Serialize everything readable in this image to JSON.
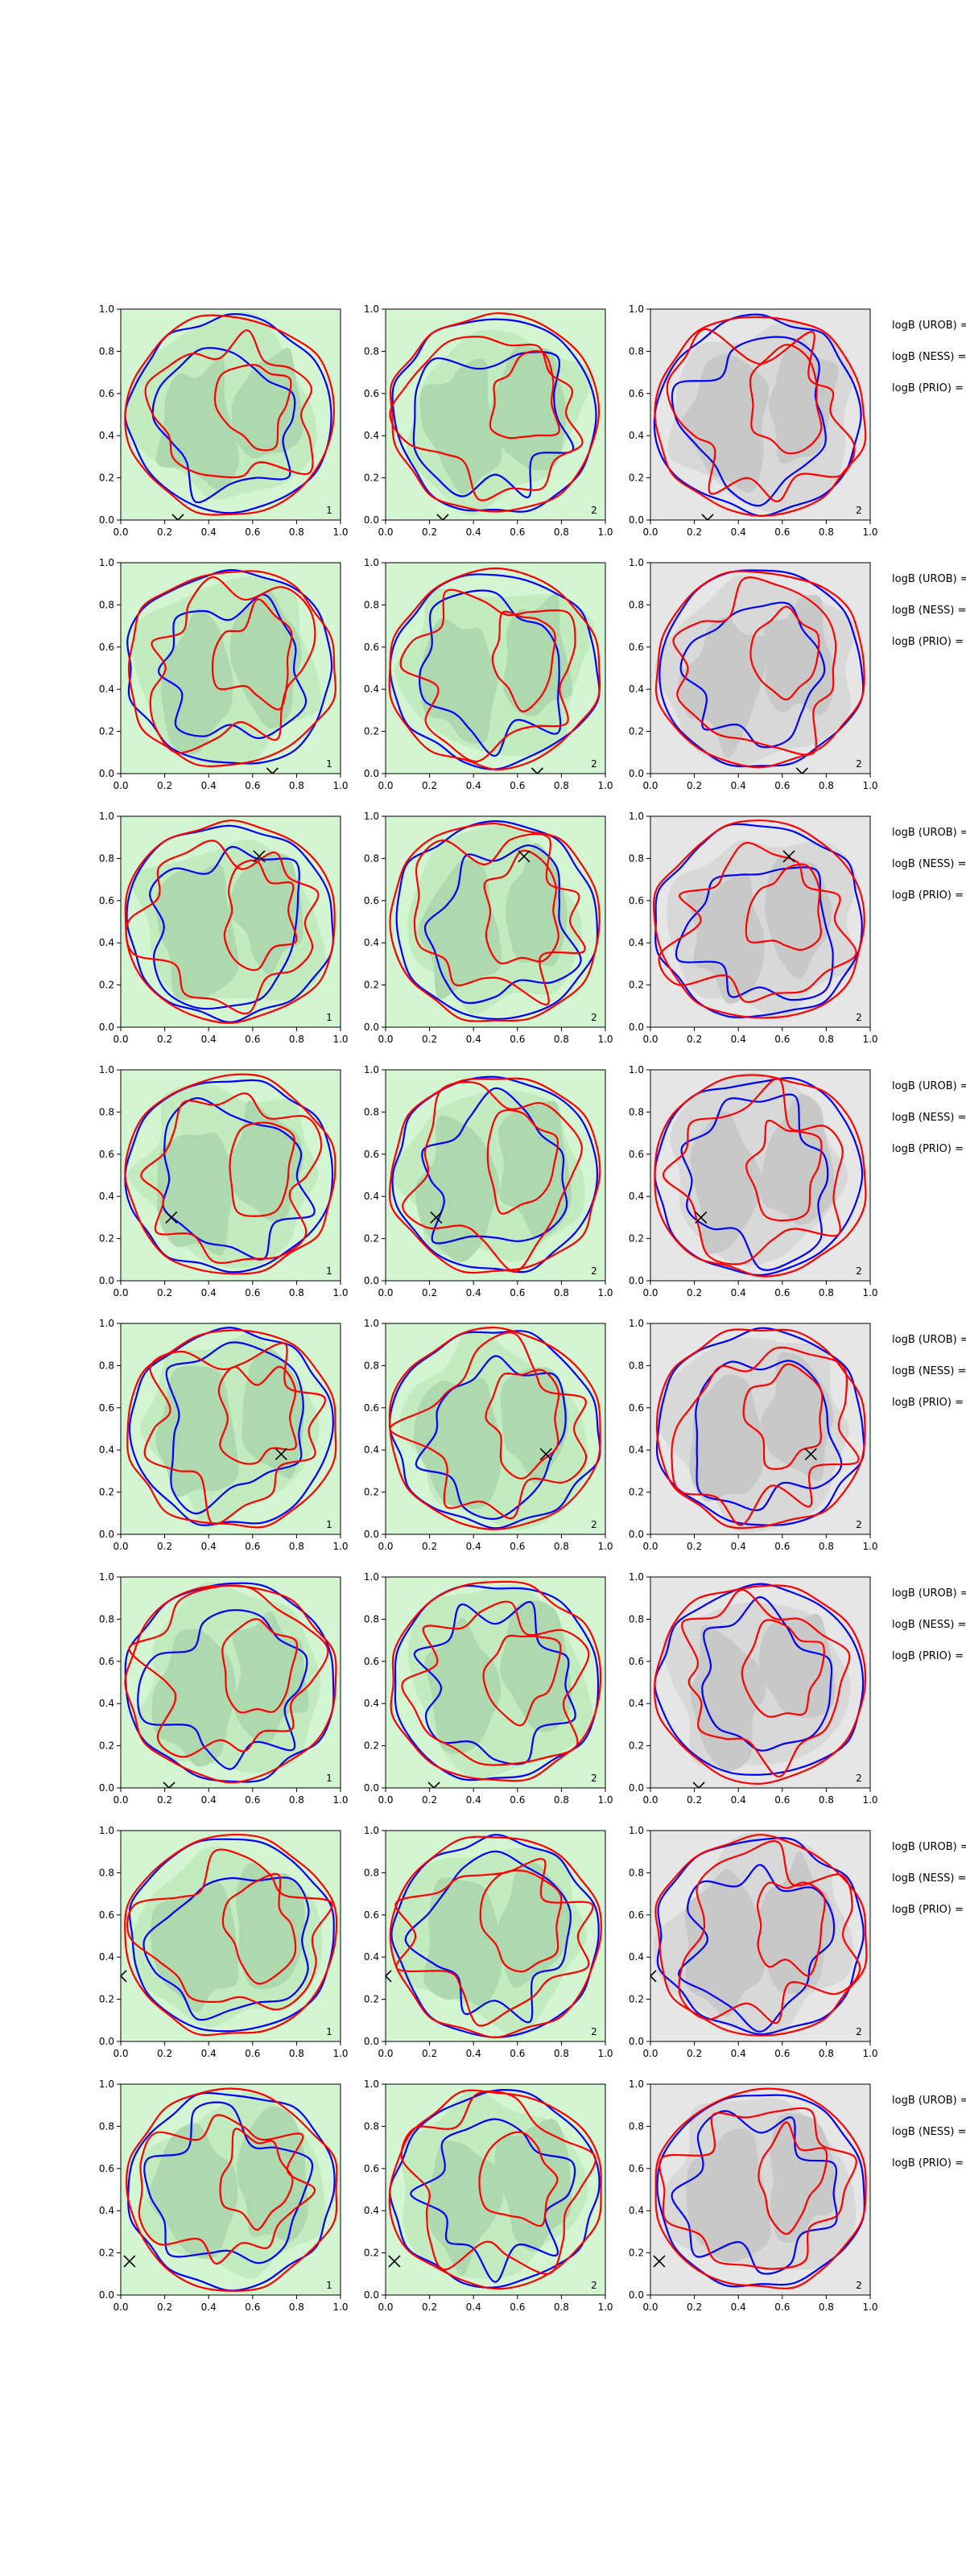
{
  "colors": {
    "red": "#ff0000",
    "blue": "#0000ff",
    "green_base": "#d4f5d2",
    "green_mid": "#c2ebc0",
    "green_dark": "#aed8ae",
    "grey_base": "#e6e6e6",
    "grey_mid": "#d8d8d8",
    "grey_dark": "#c8c8c8"
  },
  "tick_labels": [
    "0.0",
    "0.2",
    "0.4",
    "0.6",
    "0.8",
    "1.0"
  ],
  "column_labels": [
    "1",
    "2",
    "2"
  ],
  "side_labels": [
    "logB (UROB) =",
    "logB (NESS) =",
    "logB (PRIO) ="
  ],
  "chart_data": {
    "type": "contour",
    "grid": "8 rows x 3 columns",
    "xlim": [
      0,
      1
    ],
    "ylim": [
      0,
      1
    ],
    "xticks": [
      0.0,
      0.2,
      0.4,
      0.6,
      0.8,
      1.0
    ],
    "yticks": [
      0.0,
      0.2,
      0.4,
      0.6,
      0.8,
      1.0
    ],
    "column_fills": [
      "green",
      "green",
      "grey"
    ],
    "rows": [
      {
        "marker": {
          "x": 0.26,
          "y": 0.0
        }
      },
      {
        "marker": {
          "x": 0.69,
          "y": 0.0
        }
      },
      {
        "marker": {
          "x": 0.63,
          "y": 0.81
        }
      },
      {
        "marker": {
          "x": 0.23,
          "y": 0.3
        }
      },
      {
        "marker": {
          "x": 0.73,
          "y": 0.38
        }
      },
      {
        "marker": {
          "x": 0.22,
          "y": 0.0
        }
      },
      {
        "marker": {
          "x": 0.0,
          "y": 0.31
        }
      },
      {
        "marker": {
          "x": 0.04,
          "y": 0.16
        }
      }
    ]
  }
}
